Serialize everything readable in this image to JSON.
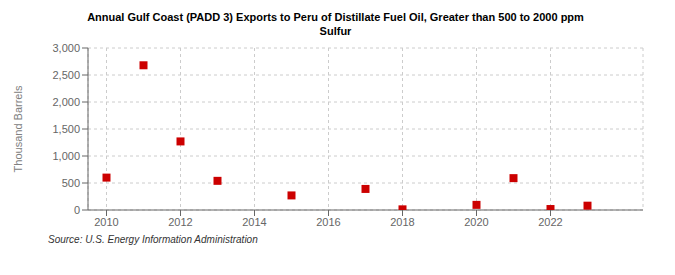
{
  "chart_data": {
    "type": "scatter",
    "title": "Annual Gulf Coast (PADD 3) Exports to Peru of Distillate Fuel Oil, Greater than 500 to 2000 ppm\nSulfur",
    "ylabel": "Thousand Barrels",
    "annotations": [
      "Source: U.S. Energy Information Administration"
    ],
    "x": [
      2010,
      2011,
      2012,
      2013,
      2015,
      2017,
      2018,
      2020,
      2021,
      2022,
      2023
    ],
    "values": [
      600,
      2680,
      1270,
      540,
      270,
      390,
      12,
      95,
      590,
      18,
      80
    ],
    "color": "#cc0000",
    "marker": "square",
    "xlim": [
      2009.5,
      2024.5
    ],
    "xticks": [
      2010,
      2012,
      2014,
      2016,
      2018,
      2020,
      2022
    ],
    "ylim": [
      0,
      3000
    ],
    "yticks": [
      0,
      500,
      {
        "value": 1000,
        "label": "1,000"
      },
      {
        "value": 1500,
        "label": "1,500"
      },
      {
        "value": 2000,
        "label": "2,000"
      },
      {
        "value": 2500,
        "label": "2,500"
      },
      {
        "value": 3000,
        "label": "3,000"
      }
    ],
    "grid": true
  }
}
